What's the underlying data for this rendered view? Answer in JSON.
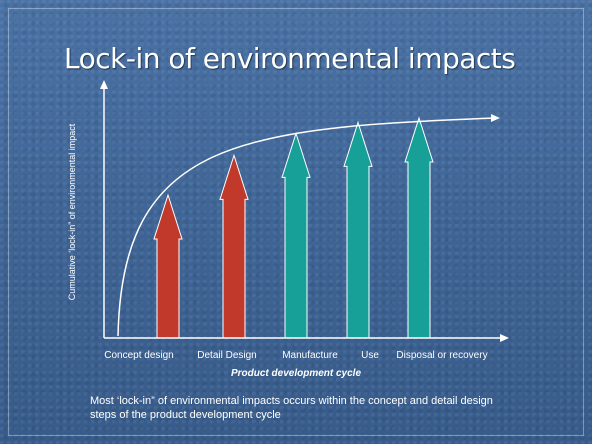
{
  "slide": {
    "title": "Lock-in of environmental impacts",
    "y_axis_label": "Cumulative ‘lock-in” of environmental impact",
    "x_axis_label": "Product development cycle",
    "caption": "Most ‘lock-in” of environmental impacts occurs within the concept and detail design steps of the product development cycle"
  },
  "stages": [
    {
      "label": "Concept design",
      "color": "#c0392b",
      "level": 0.65
    },
    {
      "label": "Detail Design",
      "color": "#c0392b",
      "level": 0.83
    },
    {
      "label": "Manufacture",
      "color": "#16a098",
      "level": 0.93
    },
    {
      "label": "Use",
      "color": "#16a098",
      "level": 0.98
    },
    {
      "label": "Disposal or recovery",
      "color": "#16a098",
      "level": 1.0
    }
  ],
  "colors": {
    "background": "#3f6595",
    "design_arrows": "#c0392b",
    "later_arrows": "#16a098",
    "curve": "#ffffff"
  }
}
